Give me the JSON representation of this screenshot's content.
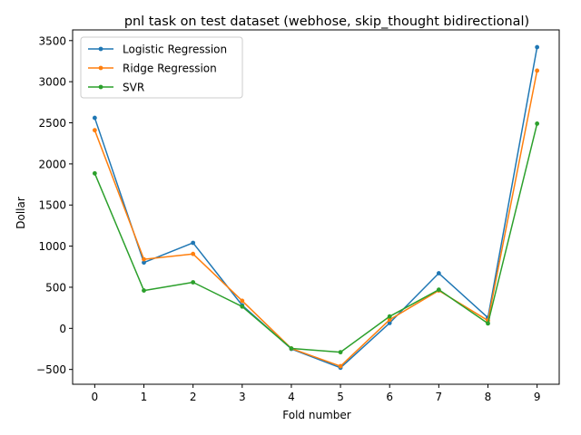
{
  "chart_data": {
    "type": "line",
    "title": "pnl task on test dataset (webhose, skip_thought bidirectional)",
    "xlabel": "Fold number",
    "ylabel": "Dollar",
    "x": [
      0,
      1,
      2,
      3,
      4,
      5,
      6,
      7,
      8,
      9
    ],
    "xlim": [
      -0.45,
      9.45
    ],
    "ylim": [
      -680,
      3630
    ],
    "xticks": [
      0,
      1,
      2,
      3,
      4,
      5,
      6,
      7,
      8,
      9
    ],
    "yticks": [
      -500,
      0,
      500,
      1000,
      1500,
      2000,
      2500,
      3000,
      3500
    ],
    "grid": false,
    "legend_position": "top-left",
    "series": [
      {
        "name": "Logistic Regression",
        "color": "#1f77b4",
        "values": [
          2560,
          800,
          1040,
          280,
          -250,
          -480,
          65,
          670,
          130,
          3420
        ]
      },
      {
        "name": "Ridge Regression",
        "color": "#ff7f0e",
        "values": [
          2410,
          840,
          905,
          335,
          -245,
          -460,
          105,
          460,
          95,
          3135
        ]
      },
      {
        "name": "SVR",
        "color": "#2ca02c",
        "values": [
          1885,
          460,
          560,
          265,
          -245,
          -290,
          145,
          470,
          60,
          2490
        ]
      }
    ]
  }
}
